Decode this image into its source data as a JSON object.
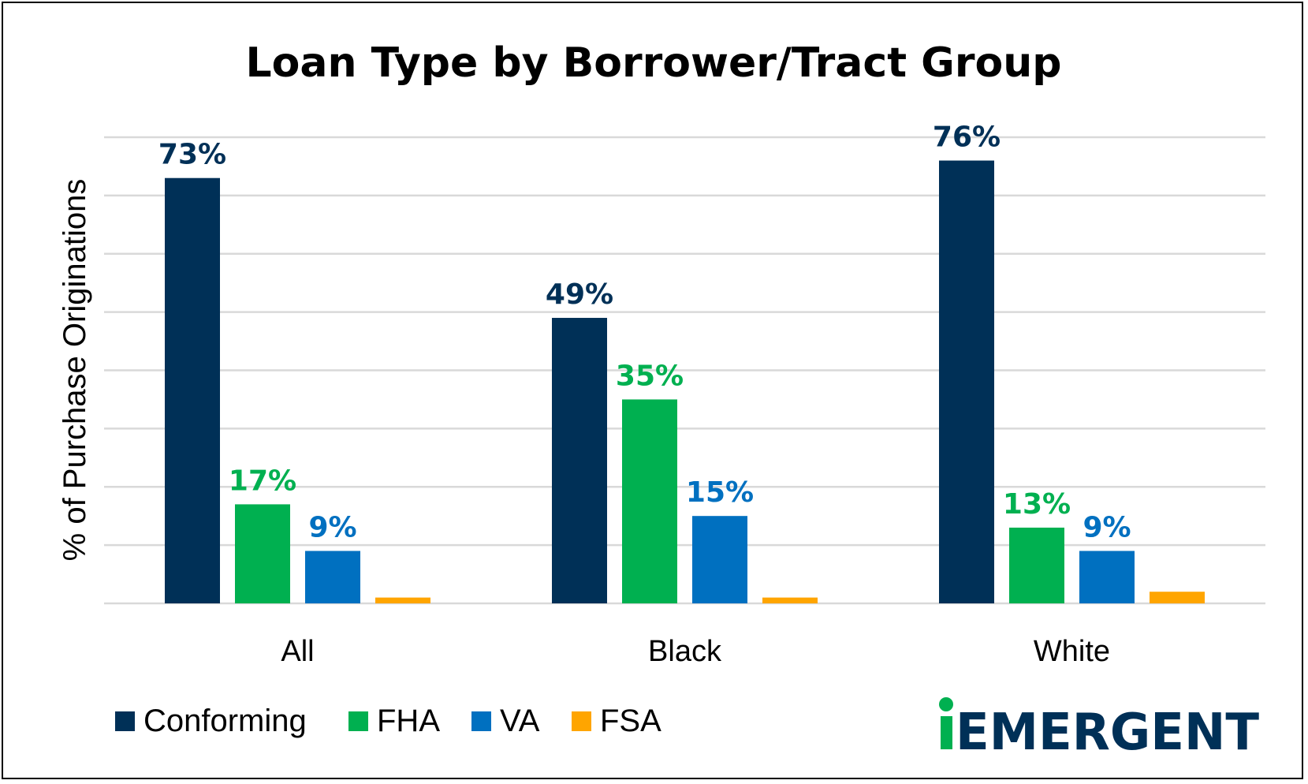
{
  "chart_data": {
    "type": "bar",
    "title": "Loan Type by Borrower/Tract Group",
    "ylabel": "% of Purchase Originations",
    "xlabel": "",
    "categories": [
      "All",
      "Black",
      "White"
    ],
    "ylim": [
      0,
      80
    ],
    "grid": true,
    "legend_position": "bottom-left",
    "series": [
      {
        "name": "Conforming",
        "values": [
          73,
          49,
          76
        ],
        "labels": [
          "73%",
          "49%",
          "76%"
        ],
        "color": "#003057"
      },
      {
        "name": "FHA",
        "values": [
          17,
          35,
          13
        ],
        "labels": [
          "17%",
          "35%",
          "13%"
        ],
        "color": "#00B050"
      },
      {
        "name": "VA",
        "values": [
          9,
          15,
          9
        ],
        "labels": [
          "9%",
          "15%",
          "9%"
        ],
        "color": "#0070C0"
      },
      {
        "name": "FSA",
        "values": [
          1,
          1,
          2
        ],
        "labels": [],
        "color": "#FFA500"
      }
    ]
  },
  "logo": {
    "text": "EMERGENT",
    "dot_color": "#00B050",
    "text_color": "#003057"
  }
}
